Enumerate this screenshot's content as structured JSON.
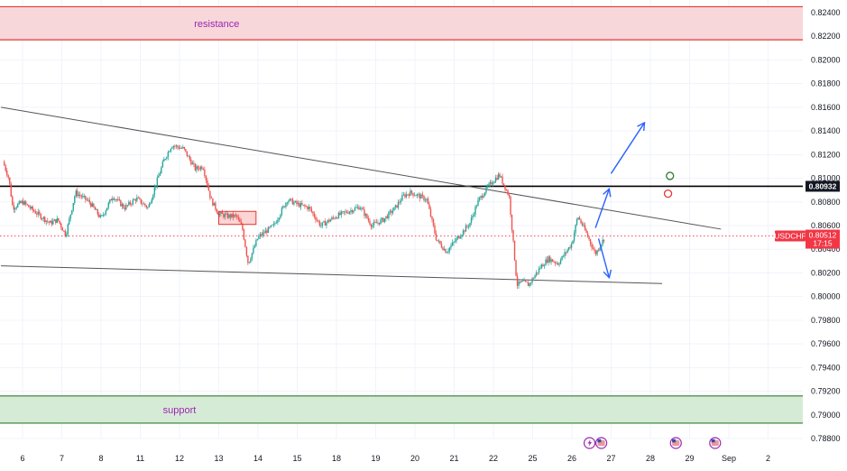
{
  "chart_data": {
    "type": "candlestick",
    "symbol": "USDCHF",
    "last_price": "0.80512",
    "countdown": "17:15",
    "key_level": "0.80932",
    "ylim": [
      0.7875,
      0.8245
    ],
    "y_ticks": [
      "0.82400",
      "0.82200",
      "0.82000",
      "0.81800",
      "0.81600",
      "0.81400",
      "0.81200",
      "0.81000",
      "0.80800",
      "0.80600",
      "0.80400",
      "0.80200",
      "0.80000",
      "0.79800",
      "0.79600",
      "0.79400",
      "0.79200",
      "0.79000",
      "0.78800"
    ],
    "x_ticks": [
      {
        "label": "6",
        "day": 0
      },
      {
        "label": "7",
        "day": 1
      },
      {
        "label": "8",
        "day": 2
      },
      {
        "label": "11",
        "day": 3
      },
      {
        "label": "12",
        "day": 4
      },
      {
        "label": "13",
        "day": 5
      },
      {
        "label": "14",
        "day": 6
      },
      {
        "label": "15",
        "day": 7
      },
      {
        "label": "18",
        "day": 8
      },
      {
        "label": "19",
        "day": 9
      },
      {
        "label": "20",
        "day": 10
      },
      {
        "label": "21",
        "day": 11
      },
      {
        "label": "22",
        "day": 12
      },
      {
        "label": "25",
        "day": 13
      },
      {
        "label": "26",
        "day": 14
      },
      {
        "label": "27",
        "day": 15
      },
      {
        "label": "28",
        "day": 16
      },
      {
        "label": "29",
        "day": 17
      },
      {
        "label": "Sep",
        "day": 18
      },
      {
        "label": "2",
        "day": 19
      }
    ],
    "zones": [
      {
        "label": "resistance",
        "from": 0.8217,
        "to": 0.8245,
        "color": "#f8d7da",
        "edge": "#e53935"
      },
      {
        "label": "support",
        "from": 0.7893,
        "to": 0.7916,
        "color": "#d6ebd6",
        "edge": "#2e7d32"
      }
    ],
    "trendlines": [
      {
        "from": [
          -0.55,
          0.816
        ],
        "to": [
          17.8,
          0.8057
        ]
      },
      {
        "from": [
          -0.55,
          0.8026
        ],
        "to": [
          16.3,
          0.8011
        ]
      }
    ],
    "ohlc_anchors": [
      [
        -0.5,
        0.8114
      ],
      [
        -0.35,
        0.81
      ],
      [
        -0.25,
        0.8075
      ],
      [
        0.0,
        0.808
      ],
      [
        0.3,
        0.8072
      ],
      [
        0.7,
        0.8062
      ],
      [
        0.9,
        0.8065
      ],
      [
        1.1,
        0.8052
      ],
      [
        1.35,
        0.8088
      ],
      [
        1.7,
        0.808
      ],
      [
        2.0,
        0.8066
      ],
      [
        2.3,
        0.8085
      ],
      [
        2.6,
        0.8075
      ],
      [
        2.9,
        0.8083
      ],
      [
        3.2,
        0.8075
      ],
      [
        3.6,
        0.8115
      ],
      [
        3.8,
        0.8128
      ],
      [
        4.1,
        0.8125
      ],
      [
        4.4,
        0.8108
      ],
      [
        4.6,
        0.811
      ],
      [
        4.8,
        0.8082
      ],
      [
        5.0,
        0.807
      ],
      [
        5.2,
        0.8068
      ],
      [
        5.45,
        0.8068
      ],
      [
        5.6,
        0.8058
      ],
      [
        5.75,
        0.8028
      ],
      [
        6.0,
        0.805
      ],
      [
        6.4,
        0.806
      ],
      [
        6.75,
        0.8082
      ],
      [
        7.0,
        0.8078
      ],
      [
        7.3,
        0.8075
      ],
      [
        7.6,
        0.806
      ],
      [
        8.0,
        0.8068
      ],
      [
        8.3,
        0.8072
      ],
      [
        8.6,
        0.8076
      ],
      [
        8.9,
        0.806
      ],
      [
        9.2,
        0.8065
      ],
      [
        9.5,
        0.8075
      ],
      [
        9.7,
        0.8085
      ],
      [
        9.9,
        0.8088
      ],
      [
        10.3,
        0.8082
      ],
      [
        10.55,
        0.8048
      ],
      [
        10.8,
        0.8038
      ],
      [
        11.1,
        0.805
      ],
      [
        11.4,
        0.8062
      ],
      [
        11.6,
        0.808
      ],
      [
        11.8,
        0.809
      ],
      [
        12.0,
        0.8098
      ],
      [
        12.15,
        0.8103
      ],
      [
        12.4,
        0.8085
      ],
      [
        12.6,
        0.801
      ],
      [
        12.75,
        0.8012
      ],
      [
        12.9,
        0.801
      ],
      [
        13.2,
        0.8025
      ],
      [
        13.4,
        0.8032
      ],
      [
        13.65,
        0.8028
      ],
      [
        14.0,
        0.8045
      ],
      [
        14.15,
        0.8068
      ],
      [
        14.35,
        0.8055
      ],
      [
        14.6,
        0.8036
      ],
      [
        14.85,
        0.8051
      ]
    ],
    "rect_annotation": {
      "from": [
        5.0,
        0.8072
      ],
      "to": [
        5.95,
        0.8061
      ]
    },
    "arrows": [
      {
        "points": [
          [
            14.6,
            0.8058
          ],
          [
            14.95,
            0.8091
          ]
        ],
        "head": true
      },
      {
        "points": [
          [
            14.68,
            0.8049
          ],
          [
            14.95,
            0.8016
          ]
        ],
        "head": true
      },
      {
        "points": [
          [
            15.0,
            0.8104
          ],
          [
            15.85,
            0.8147
          ]
        ],
        "head": true
      }
    ],
    "markers": [
      {
        "type": "circle-green",
        "day": 16.5,
        "price": 0.8102
      },
      {
        "type": "circle-red",
        "day": 16.45,
        "price": 0.8087
      }
    ],
    "event_icons": [
      {
        "day": 14.45,
        "kind": "lightning"
      },
      {
        "day": 14.75,
        "kind": "flag"
      },
      {
        "day": 16.65,
        "kind": "flag"
      },
      {
        "day": 17.65,
        "kind": "flag"
      }
    ],
    "colors": {
      "up": "#26a69a",
      "down": "#ef5350",
      "grid": "#f0f3fa",
      "price_tag": "#f23645",
      "key_level_tag": "#131722",
      "arrow": "#2962ff"
    }
  }
}
